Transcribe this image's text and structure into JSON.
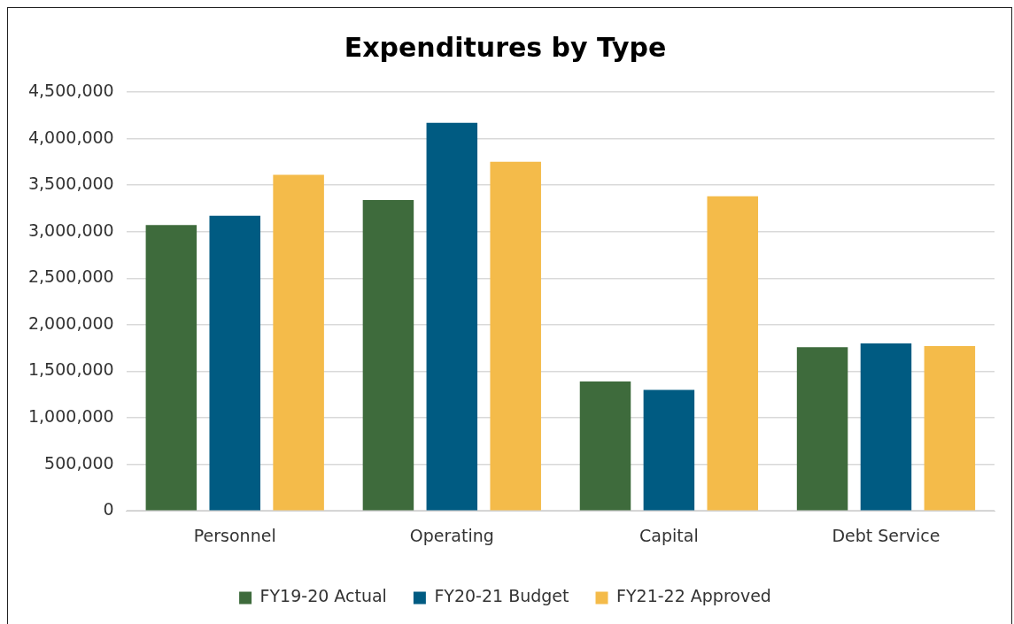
{
  "chart_data": {
    "type": "bar",
    "title": "Expenditures by Type",
    "categories": [
      "Personnel",
      "Operating",
      "Capital",
      "Debt Service"
    ],
    "series": [
      {
        "name": "FY19-20 Actual",
        "color": "#3e6b3c",
        "values": [
          3070000,
          3340000,
          1390000,
          1760000
        ]
      },
      {
        "name": "FY20-21 Budget",
        "color": "#005b82",
        "values": [
          3170000,
          4170000,
          1300000,
          1800000
        ]
      },
      {
        "name": "FY21-22 Approved",
        "color": "#f4bb4a",
        "values": [
          3610000,
          3750000,
          3380000,
          1770000
        ]
      }
    ],
    "ylim": [
      0,
      4500000
    ],
    "yticks": [
      0,
      {
        "value": 500000,
        "label": "500,000"
      },
      {
        "value": 1000000,
        "label": "1,000,000"
      },
      {
        "value": 1500000,
        "label": "1,500,000"
      },
      {
        "value": 2000000,
        "label": "2,000,000"
      },
      {
        "value": 2500000,
        "label": "2,500,000"
      },
      {
        "value": 3000000,
        "label": "3,000,000"
      },
      {
        "value": 3500000,
        "label": "3,500,000"
      },
      {
        "value": 4000000,
        "label": "4,000,000"
      },
      {
        "value": 4500000,
        "label": "4,500,000"
      }
    ],
    "grid": "y",
    "legend": "bottom"
  }
}
